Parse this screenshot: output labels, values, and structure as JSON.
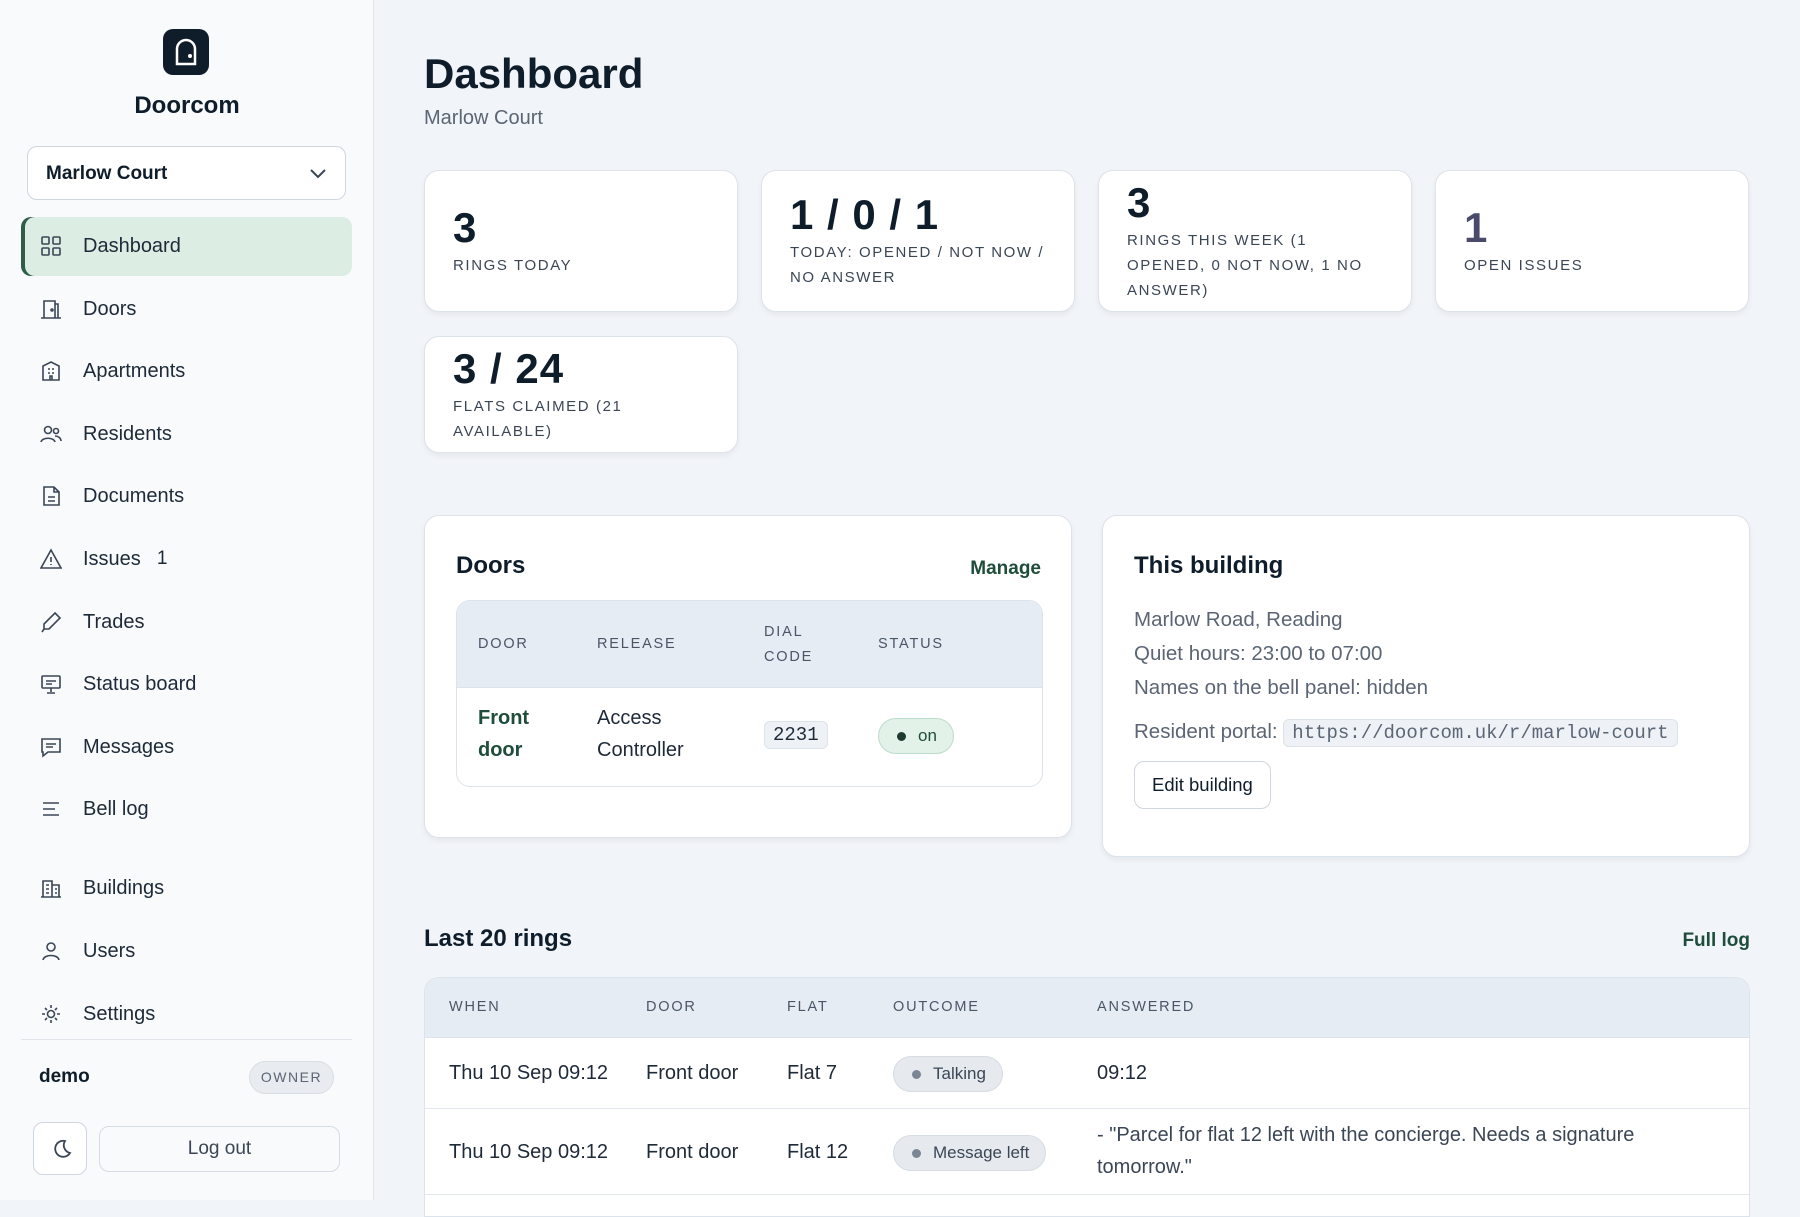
{
  "sidebar": {
    "brand": "Doorcom",
    "building_select": "Marlow Court",
    "nav": [
      {
        "label": "Dashboard"
      },
      {
        "label": "Doors"
      },
      {
        "label": "Apartments"
      },
      {
        "label": "Residents"
      },
      {
        "label": "Documents"
      },
      {
        "label": "Issues",
        "badge": 1
      },
      {
        "label": "Trades"
      },
      {
        "label": "Status board"
      },
      {
        "label": "Messages"
      },
      {
        "label": "Bell log"
      }
    ],
    "nav_secondary": [
      {
        "label": "Buildings"
      },
      {
        "label": "Users"
      },
      {
        "label": "Settings"
      }
    ],
    "user": {
      "name": "demo",
      "role": "OWNER"
    },
    "logout": "Log out"
  },
  "header": {
    "title": "Dashboard",
    "subtitle": "Marlow Court"
  },
  "stats": [
    {
      "value": "3",
      "label": "RINGS TODAY"
    },
    {
      "value": "1 / 0 / 1",
      "label": "TODAY: OPENED / NOT NOW / NO ANSWER"
    },
    {
      "value": "3",
      "label": "RINGS THIS WEEK (1 OPENED, 0 NOT NOW, 1 NO ANSWER)"
    },
    {
      "value": "1",
      "label": "OPEN ISSUES"
    },
    {
      "value": "3 / 24",
      "label": "FLATS CLAIMED (21 AVAILABLE)"
    }
  ],
  "doors": {
    "title": "Doors",
    "action": "Manage",
    "columns": [
      "DOOR",
      "RELEASE",
      "DIAL CODE",
      "STATUS"
    ],
    "rows": [
      [
        "Front door",
        "Access Controller",
        "2231",
        "on"
      ]
    ]
  },
  "building": {
    "title": "This building",
    "lines": [
      "Marlow Road, Reading",
      "Quiet hours: 23:00 to 07:00",
      "Names on the bell panel: hidden"
    ],
    "portal_label": "Resident portal:",
    "portal_url": "https://doorcom.uk/r/marlow-court",
    "button": "Edit building"
  },
  "rings": {
    "title": "Last 20 rings",
    "action": "Full log",
    "columns": [
      "WHEN",
      "DOOR",
      "FLAT",
      "OUTCOME",
      "ANSWERED"
    ],
    "rows": [
      [
        "Thu 10 Sep 09:12",
        "Front door",
        "Flat 7",
        "Talking",
        "09:12"
      ],
      [
        "Thu 10 Sep 09:12",
        "Front door",
        "Flat 12",
        "Message left",
        "- \"Parcel for flat 12 left with the concierge. Needs a signature tomorrow.\""
      ]
    ]
  }
}
